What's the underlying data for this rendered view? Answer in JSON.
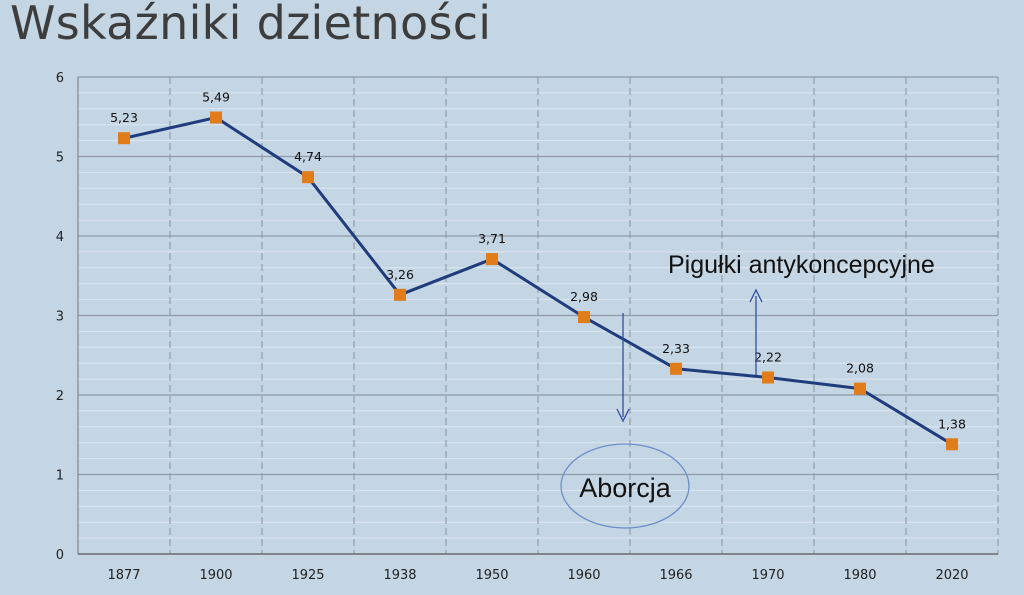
{
  "title": "Wskaźniki dzietności",
  "chart_data": {
    "type": "line",
    "categories": [
      "1877",
      "1900",
      "1925",
      "1938",
      "1950",
      "1960",
      "1966",
      "1970",
      "1980",
      "2020"
    ],
    "values": [
      5.23,
      5.49,
      4.74,
      3.26,
      3.71,
      2.98,
      2.33,
      2.22,
      2.08,
      1.38
    ],
    "value_labels": [
      "5,23",
      "5,49",
      "4,74",
      "3,26",
      "3,71",
      "2,98",
      "2,33",
      "2,22",
      "2,08",
      "1,38"
    ],
    "ylim": [
      0,
      6
    ],
    "yticks": [
      "0",
      "1",
      "2",
      "3",
      "4",
      "5",
      "6"
    ],
    "grid": true,
    "line_color": "#1f3c7d",
    "marker_color": "#e07c1a",
    "annotations": {
      "pill": "Pigułki antykoncepcyjne",
      "abortion": "Aborcja"
    }
  }
}
